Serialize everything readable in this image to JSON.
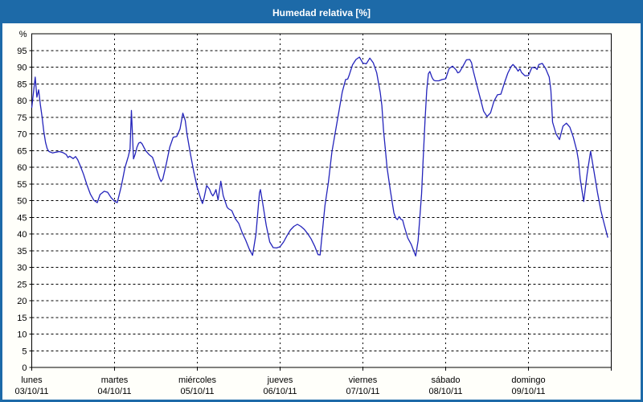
{
  "window": {
    "title": "Humedad relativa [%]"
  },
  "colors": {
    "frame": "#1d6aa8",
    "titlebar_bg": "#1d6aa8",
    "title_text": "#ffffff",
    "content_bg": "#fffffa",
    "plot_bg": "#ffffff",
    "plot_border": "#000000",
    "grid": "#000000",
    "line": "#2424bb",
    "label_text": "#000000"
  },
  "chart_data": {
    "type": "line",
    "title": "Humedad relativa [%]",
    "legend": "none",
    "grid": "dashed",
    "y_axis": {
      "unit_label": "%",
      "min": 0,
      "max": 100,
      "tick_step": 5,
      "ticks": [
        0,
        5,
        10,
        15,
        20,
        25,
        30,
        35,
        40,
        45,
        50,
        55,
        60,
        65,
        70,
        75,
        80,
        85,
        90,
        95
      ]
    },
    "x_axis": {
      "unit": "hours_from_monday_00h",
      "range_hours": [
        0,
        168
      ],
      "hours_per_day": 24,
      "days": [
        {
          "name": "lunes",
          "date": "03/10/11"
        },
        {
          "name": "martes",
          "date": "04/10/11"
        },
        {
          "name": "miércoles",
          "date": "05/10/11"
        },
        {
          "name": "jueves",
          "date": "06/10/11"
        },
        {
          "name": "viernes",
          "date": "07/10/11"
        },
        {
          "name": "sábado",
          "date": "08/10/11"
        },
        {
          "name": "domingo",
          "date": "09/10/11"
        }
      ]
    },
    "series": [
      {
        "name": "Humedad relativa",
        "color": "#2424bb",
        "points": [
          [
            0,
            77.8
          ],
          [
            1,
            87
          ],
          [
            1.5,
            81
          ],
          [
            2,
            83.2
          ],
          [
            2.5,
            78.8
          ],
          [
            3,
            75
          ],
          [
            3.5,
            70.7
          ],
          [
            4,
            67.4
          ],
          [
            4.5,
            65.5
          ],
          [
            5,
            64.7
          ],
          [
            6,
            64.3
          ],
          [
            7,
            64.5
          ],
          [
            8,
            64.7
          ],
          [
            9,
            64.4
          ],
          [
            10,
            63.8
          ],
          [
            10.5,
            62.9
          ],
          [
            11,
            63.3
          ],
          [
            12,
            62.6
          ],
          [
            12.7,
            63.2
          ],
          [
            13.3,
            62.3
          ],
          [
            14,
            60.6
          ],
          [
            15,
            57.9
          ],
          [
            16,
            54.7
          ],
          [
            17,
            51.9
          ],
          [
            18,
            50.1
          ],
          [
            19,
            49.4
          ],
          [
            19.8,
            51.8
          ],
          [
            21,
            52.8
          ],
          [
            22,
            52.5
          ],
          [
            23,
            50.9
          ],
          [
            24,
            49.8
          ],
          [
            24.8,
            49.4
          ],
          [
            26,
            54.5
          ],
          [
            27,
            59.8
          ],
          [
            28,
            63.3
          ],
          [
            28.5,
            65.5
          ],
          [
            28.9,
            77
          ],
          [
            29.5,
            62.5
          ],
          [
            30,
            64
          ],
          [
            30.5,
            66
          ],
          [
            31,
            67.2
          ],
          [
            31.5,
            67.5
          ],
          [
            32,
            67
          ],
          [
            33,
            65
          ],
          [
            34,
            63.8
          ],
          [
            35,
            63
          ],
          [
            36,
            60
          ],
          [
            37,
            56.8
          ],
          [
            37.5,
            55.7
          ],
          [
            38,
            56.5
          ],
          [
            39,
            61
          ],
          [
            40,
            66
          ],
          [
            41,
            69
          ],
          [
            42,
            69.2
          ],
          [
            43,
            71.5
          ],
          [
            43.8,
            76.2
          ],
          [
            44.5,
            74
          ],
          [
            45,
            70
          ],
          [
            46,
            64
          ],
          [
            47,
            58.5
          ],
          [
            48,
            53.8
          ],
          [
            49,
            50.5
          ],
          [
            49.5,
            49.1
          ],
          [
            50,
            51
          ],
          [
            50.7,
            54.5
          ],
          [
            51.5,
            53.5
          ],
          [
            52,
            52.2
          ],
          [
            52.5,
            51.4
          ],
          [
            53,
            52.3
          ],
          [
            53.4,
            53.3
          ],
          [
            54,
            50.2
          ],
          [
            54.8,
            55.8
          ],
          [
            55.5,
            51.5
          ],
          [
            56,
            50
          ],
          [
            56.6,
            48.1
          ],
          [
            57,
            47.6
          ],
          [
            58,
            47
          ],
          [
            59,
            44.6
          ],
          [
            60,
            43.2
          ],
          [
            61,
            40.4
          ],
          [
            62,
            38.2
          ],
          [
            63,
            35.6
          ],
          [
            64,
            33.6
          ],
          [
            65,
            40
          ],
          [
            66,
            52.3
          ],
          [
            66.3,
            53.3
          ],
          [
            67,
            49
          ],
          [
            68,
            42.5
          ],
          [
            69,
            37.6
          ],
          [
            70,
            35.9
          ],
          [
            71,
            35.8
          ],
          [
            72,
            36.2
          ],
          [
            73,
            37.6
          ],
          [
            74,
            39.5
          ],
          [
            75,
            41.2
          ],
          [
            76,
            42.3
          ],
          [
            77,
            42.9
          ],
          [
            78,
            42.3
          ],
          [
            79,
            41.4
          ],
          [
            80,
            40.1
          ],
          [
            81,
            38.5
          ],
          [
            82,
            36.4
          ],
          [
            83,
            33.8
          ],
          [
            83.6,
            33.7
          ],
          [
            84,
            38
          ],
          [
            85,
            48.5
          ],
          [
            86,
            55.5
          ],
          [
            87,
            64.5
          ],
          [
            88,
            70.5
          ],
          [
            89,
            76.5
          ],
          [
            90,
            82.5
          ],
          [
            91,
            86.3
          ],
          [
            91.6,
            86.4
          ],
          [
            92,
            87.5
          ],
          [
            93,
            90.7
          ],
          [
            94,
            92.3
          ],
          [
            95,
            93
          ],
          [
            96,
            91.2
          ],
          [
            97,
            91
          ],
          [
            98,
            92.7
          ],
          [
            99,
            91.3
          ],
          [
            100,
            88.3
          ],
          [
            101,
            82.5
          ],
          [
            101.5,
            78.5
          ],
          [
            102,
            71
          ],
          [
            102.5,
            65.5
          ],
          [
            103,
            60
          ],
          [
            104,
            52.8
          ],
          [
            105,
            46.3
          ],
          [
            105.5,
            44.8
          ],
          [
            106,
            44.3
          ],
          [
            106.5,
            45.2
          ],
          [
            107,
            44.4
          ],
          [
            107.5,
            44.2
          ],
          [
            108,
            42.3
          ],
          [
            109,
            38.8
          ],
          [
            110,
            36.9
          ],
          [
            111,
            34.2
          ],
          [
            111.3,
            33.4
          ],
          [
            112,
            38
          ],
          [
            113,
            52
          ],
          [
            113.5,
            63
          ],
          [
            114,
            74
          ],
          [
            114.5,
            83
          ],
          [
            115,
            88
          ],
          [
            115.4,
            88.7
          ],
          [
            116,
            87
          ],
          [
            116.5,
            86.1
          ],
          [
            117,
            85.9
          ],
          [
            118,
            85.9
          ],
          [
            119,
            86.3
          ],
          [
            120,
            86.5
          ],
          [
            121,
            89.6
          ],
          [
            122,
            90.3
          ],
          [
            123,
            89.2
          ],
          [
            123.5,
            88.3
          ],
          [
            124,
            88.5
          ],
          [
            125,
            90.3
          ],
          [
            126,
            92.2
          ],
          [
            127,
            92.3
          ],
          [
            127.5,
            91.3
          ],
          [
            128,
            88.9
          ],
          [
            129,
            84.8
          ],
          [
            130,
            80.8
          ],
          [
            131,
            76.8
          ],
          [
            132,
            75.2
          ],
          [
            133,
            76.3
          ],
          [
            134,
            79.8
          ],
          [
            135,
            81.7
          ],
          [
            136,
            81.9
          ],
          [
            137,
            85.2
          ],
          [
            138,
            88.2
          ],
          [
            139,
            90.2
          ],
          [
            139.5,
            90.8
          ],
          [
            140,
            90.3
          ],
          [
            140.5,
            89.6
          ],
          [
            141,
            88.8
          ],
          [
            141.5,
            89.5
          ],
          [
            142,
            88.4
          ],
          [
            143,
            87.4
          ],
          [
            144,
            87.5
          ],
          [
            145,
            89.9
          ],
          [
            146,
            89.8
          ],
          [
            146.5,
            89.3
          ],
          [
            147,
            90.8
          ],
          [
            148,
            91.1
          ],
          [
            149,
            89.5
          ],
          [
            150,
            87
          ],
          [
            150.5,
            83
          ],
          [
            151,
            73.5
          ],
          [
            152,
            70
          ],
          [
            153,
            68.3
          ],
          [
            154,
            72.3
          ],
          [
            155,
            73.2
          ],
          [
            156,
            72
          ],
          [
            157,
            69
          ],
          [
            158,
            65
          ],
          [
            158.5,
            62
          ],
          [
            159,
            56.5
          ],
          [
            160,
            49.7
          ],
          [
            161,
            58
          ],
          [
            162,
            64.8
          ],
          [
            163,
            58.8
          ],
          [
            164,
            52.5
          ],
          [
            165,
            47
          ],
          [
            166,
            42.9
          ],
          [
            167,
            38.9
          ]
        ]
      }
    ]
  }
}
